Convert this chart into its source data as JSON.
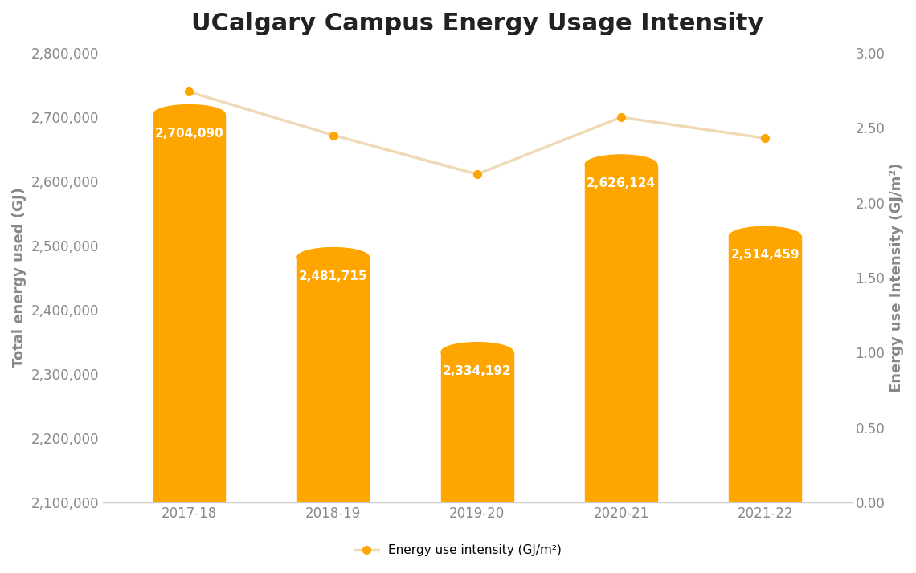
{
  "title": "UCalgary Campus Energy Usage Intensity",
  "categories": [
    "2017-18",
    "2018-19",
    "2019-20",
    "2020-21",
    "2021-22"
  ],
  "bar_values": [
    2704090,
    2481715,
    2334192,
    2626124,
    2514459
  ],
  "bar_color": "#FFA500",
  "bar_labels": [
    "2,704,090",
    "2,481,715",
    "2,334,192",
    "2,626,124",
    "2,514,459"
  ],
  "intensity_values": [
    2.74,
    2.45,
    2.19,
    2.57,
    2.43
  ],
  "line_color": "#F0D9B5",
  "line_marker": "o",
  "line_marker_color": "#FFA500",
  "ylabel_left": "Total energy used (GJ)",
  "ylabel_right": "Energy use Intensity (GJ/m²)",
  "legend_label": "Energy use intensity (GJ/m²)",
  "ylim_left": [
    2100000,
    2800000
  ],
  "ylim_right": [
    0.0,
    3.0
  ],
  "yticks_left": [
    2100000,
    2200000,
    2300000,
    2400000,
    2500000,
    2600000,
    2700000,
    2800000
  ],
  "yticks_right": [
    0.0,
    0.5,
    1.0,
    1.5,
    2.0,
    2.5,
    3.0
  ],
  "background_color": "#ffffff",
  "title_fontsize": 22,
  "label_fontsize": 13,
  "tick_fontsize": 12,
  "bar_label_fontsize": 11,
  "tick_color": "#888888",
  "spine_color": "#cccccc"
}
